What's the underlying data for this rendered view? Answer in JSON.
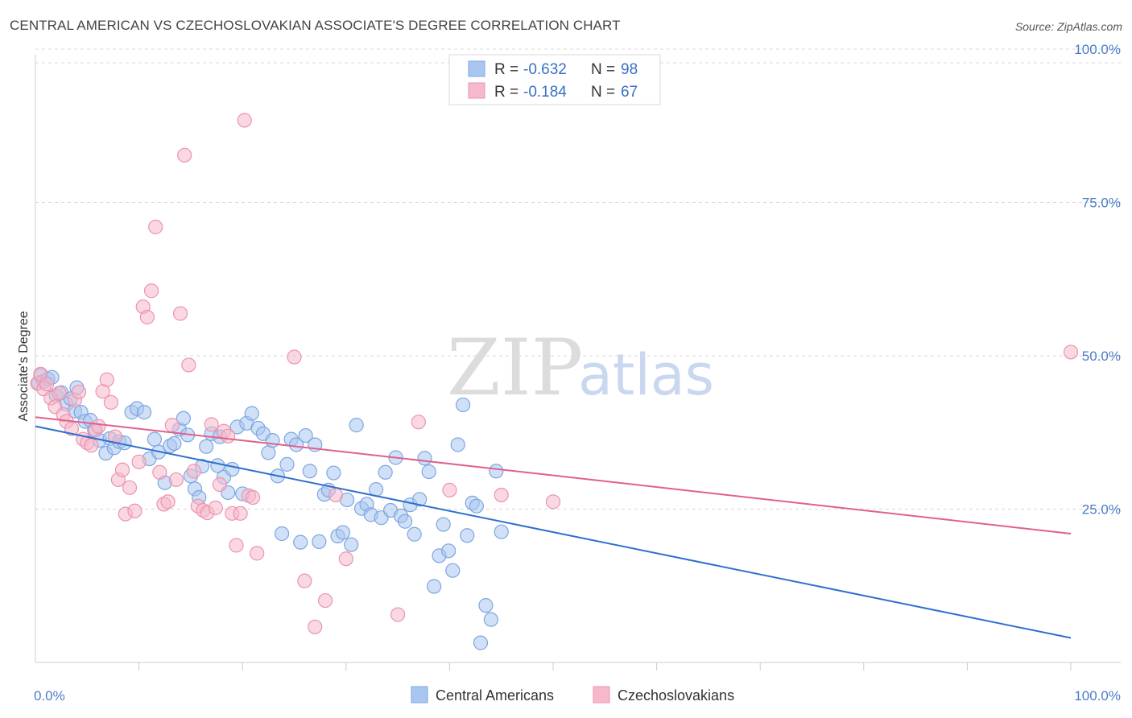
{
  "header": {
    "title": "CENTRAL AMERICAN VS CZECHOSLOVAKIAN ASSOCIATE'S DEGREE CORRELATION CHART",
    "source": "Source: ZipAtlas.com"
  },
  "watermark": {
    "zip": "ZIP",
    "atlas": "atlas"
  },
  "legend": {
    "r_label": "R =",
    "n_label": "N =",
    "rows": [
      {
        "r": "-0.632",
        "n": "98",
        "color": "#a9c6f0"
      },
      {
        "r": "-0.184",
        "n": "67",
        "color": "#f6b8cb"
      }
    ]
  },
  "colors": {
    "blue_fill": "#a9c6f0",
    "blue_stroke": "#7ea6e0",
    "blue_line": "#2f6fcf",
    "pink_fill": "#f6b8cb",
    "pink_stroke": "#ec93b0",
    "pink_line": "#e0608d",
    "tick_color": "#4a7cc9",
    "grid": "#d8d8d8"
  },
  "chart_data": {
    "type": "scatter",
    "title": "CENTRAL AMERICAN VS CZECHOSLOVAKIAN ASSOCIATE'S DEGREE CORRELATION CHART",
    "xlabel": "",
    "ylabel": "Associate's Degree",
    "xlim": [
      0,
      100
    ],
    "ylim": [
      0,
      100
    ],
    "x_tick_labels": [
      "0.0%",
      "100.0%"
    ],
    "y_ticks": [
      {
        "value": 25,
        "label": "25.0%"
      },
      {
        "value": 50,
        "label": "50.0%"
      },
      {
        "value": 75,
        "label": "75.0%"
      },
      {
        "value": 100,
        "label": "100.0%"
      }
    ],
    "grid": "horizontal dashed",
    "legend_position": "top-center",
    "series": [
      {
        "name": "Central Americans",
        "r": -0.632,
        "n": 98,
        "trend": {
          "x": [
            0,
            100
          ],
          "y": [
            38.5,
            4
          ]
        },
        "points": [
          [
            0.3,
            45.6
          ],
          [
            0.5,
            46.8
          ],
          [
            0.8,
            45.8
          ],
          [
            1.2,
            46.2
          ],
          [
            1.6,
            46.5
          ],
          [
            2.0,
            43.5
          ],
          [
            2.5,
            44.0
          ],
          [
            3.0,
            42.1
          ],
          [
            3.4,
            43.0
          ],
          [
            3.8,
            41.0
          ],
          [
            4.0,
            44.8
          ],
          [
            4.4,
            40.8
          ],
          [
            4.8,
            39.3
          ],
          [
            5.3,
            39.5
          ],
          [
            5.7,
            37.9
          ],
          [
            6.2,
            36.2
          ],
          [
            6.8,
            34.1
          ],
          [
            7.2,
            36.5
          ],
          [
            7.6,
            35.0
          ],
          [
            8.1,
            36.0
          ],
          [
            8.6,
            35.8
          ],
          [
            9.3,
            40.8
          ],
          [
            9.8,
            41.4
          ],
          [
            10.5,
            40.8
          ],
          [
            11.0,
            33.2
          ],
          [
            11.5,
            36.4
          ],
          [
            11.9,
            34.3
          ],
          [
            12.5,
            29.3
          ],
          [
            13.0,
            35.3
          ],
          [
            13.4,
            35.7
          ],
          [
            13.9,
            38.0
          ],
          [
            14.3,
            39.8
          ],
          [
            14.7,
            37.1
          ],
          [
            15.0,
            30.4
          ],
          [
            15.4,
            28.3
          ],
          [
            15.8,
            26.9
          ],
          [
            16.1,
            32.0
          ],
          [
            16.5,
            35.2
          ],
          [
            17.0,
            37.3
          ],
          [
            17.6,
            32.1
          ],
          [
            17.8,
            36.8
          ],
          [
            18.2,
            30.2
          ],
          [
            18.6,
            27.7
          ],
          [
            19.0,
            31.5
          ],
          [
            19.5,
            38.4
          ],
          [
            20.0,
            27.5
          ],
          [
            20.4,
            39.0
          ],
          [
            20.9,
            40.6
          ],
          [
            21.5,
            38.2
          ],
          [
            22.0,
            37.3
          ],
          [
            22.5,
            34.2
          ],
          [
            22.9,
            36.2
          ],
          [
            23.4,
            30.4
          ],
          [
            23.8,
            21.0
          ],
          [
            24.3,
            32.3
          ],
          [
            24.7,
            36.4
          ],
          [
            25.2,
            35.5
          ],
          [
            25.6,
            19.6
          ],
          [
            26.1,
            37.0
          ],
          [
            26.5,
            31.2
          ],
          [
            27.0,
            35.5
          ],
          [
            27.4,
            19.7
          ],
          [
            27.9,
            27.4
          ],
          [
            28.3,
            28.1
          ],
          [
            28.8,
            30.9
          ],
          [
            29.2,
            20.6
          ],
          [
            29.7,
            21.2
          ],
          [
            30.1,
            26.5
          ],
          [
            30.5,
            19.2
          ],
          [
            31.0,
            38.7
          ],
          [
            31.5,
            25.1
          ],
          [
            32.0,
            25.8
          ],
          [
            32.4,
            24.1
          ],
          [
            32.9,
            28.2
          ],
          [
            33.4,
            23.6
          ],
          [
            33.8,
            31.0
          ],
          [
            34.3,
            24.8
          ],
          [
            34.8,
            33.4
          ],
          [
            35.3,
            23.9
          ],
          [
            35.7,
            23.0
          ],
          [
            36.2,
            25.7
          ],
          [
            36.6,
            20.9
          ],
          [
            37.1,
            26.6
          ],
          [
            37.6,
            33.3
          ],
          [
            38.0,
            31.1
          ],
          [
            38.5,
            12.4
          ],
          [
            39.0,
            17.4
          ],
          [
            39.4,
            22.5
          ],
          [
            39.9,
            18.2
          ],
          [
            40.3,
            15.0
          ],
          [
            40.8,
            35.5
          ],
          [
            41.3,
            42.0
          ],
          [
            41.7,
            20.7
          ],
          [
            42.2,
            26.0
          ],
          [
            42.6,
            25.5
          ],
          [
            43.0,
            3.2
          ],
          [
            43.5,
            9.3
          ],
          [
            44.0,
            7.0
          ],
          [
            44.5,
            31.2
          ],
          [
            45.0,
            21.3
          ]
        ]
      },
      {
        "name": "Czechoslovakians",
        "r": -0.184,
        "n": 67,
        "trend": {
          "x": [
            0,
            100
          ],
          "y": [
            40,
            21
          ]
        },
        "points": [
          [
            0.2,
            45.5
          ],
          [
            0.5,
            47.0
          ],
          [
            0.8,
            44.6
          ],
          [
            1.1,
            45.4
          ],
          [
            1.5,
            43.1
          ],
          [
            1.9,
            41.7
          ],
          [
            2.3,
            43.9
          ],
          [
            2.7,
            40.4
          ],
          [
            3.0,
            39.3
          ],
          [
            3.5,
            38.1
          ],
          [
            3.8,
            42.8
          ],
          [
            4.2,
            44.1
          ],
          [
            4.6,
            36.4
          ],
          [
            5.0,
            35.8
          ],
          [
            5.4,
            35.4
          ],
          [
            5.8,
            37.9
          ],
          [
            6.1,
            38.5
          ],
          [
            6.5,
            44.2
          ],
          [
            6.9,
            46.1
          ],
          [
            7.3,
            42.4
          ],
          [
            7.7,
            36.8
          ],
          [
            8.0,
            29.8
          ],
          [
            8.4,
            31.4
          ],
          [
            8.7,
            24.2
          ],
          [
            9.1,
            28.5
          ],
          [
            9.6,
            24.7
          ],
          [
            10.0,
            32.7
          ],
          [
            10.4,
            58.0
          ],
          [
            10.8,
            56.3
          ],
          [
            11.2,
            60.6
          ],
          [
            11.6,
            71.0
          ],
          [
            12.0,
            31.0
          ],
          [
            12.4,
            25.8
          ],
          [
            12.8,
            26.2
          ],
          [
            13.2,
            38.7
          ],
          [
            13.6,
            29.8
          ],
          [
            14.0,
            56.9
          ],
          [
            14.4,
            82.7
          ],
          [
            14.8,
            48.5
          ],
          [
            15.3,
            31.2
          ],
          [
            15.7,
            25.5
          ],
          [
            16.2,
            24.8
          ],
          [
            16.6,
            24.4
          ],
          [
            17.0,
            38.8
          ],
          [
            17.4,
            25.2
          ],
          [
            17.8,
            29.0
          ],
          [
            18.2,
            37.7
          ],
          [
            18.6,
            36.9
          ],
          [
            19.0,
            24.3
          ],
          [
            19.4,
            19.1
          ],
          [
            19.8,
            24.3
          ],
          [
            20.2,
            88.4
          ],
          [
            20.6,
            27.2
          ],
          [
            21.0,
            26.9
          ],
          [
            21.4,
            17.8
          ],
          [
            25.0,
            49.8
          ],
          [
            26.0,
            13.3
          ],
          [
            27.0,
            5.8
          ],
          [
            28.0,
            10.1
          ],
          [
            29.0,
            27.3
          ],
          [
            30.0,
            16.9
          ],
          [
            35.0,
            7.8
          ],
          [
            37.0,
            39.2
          ],
          [
            40.0,
            28.1
          ],
          [
            45.0,
            27.3
          ],
          [
            50.0,
            26.2
          ],
          [
            100.0,
            50.6
          ]
        ]
      }
    ]
  }
}
